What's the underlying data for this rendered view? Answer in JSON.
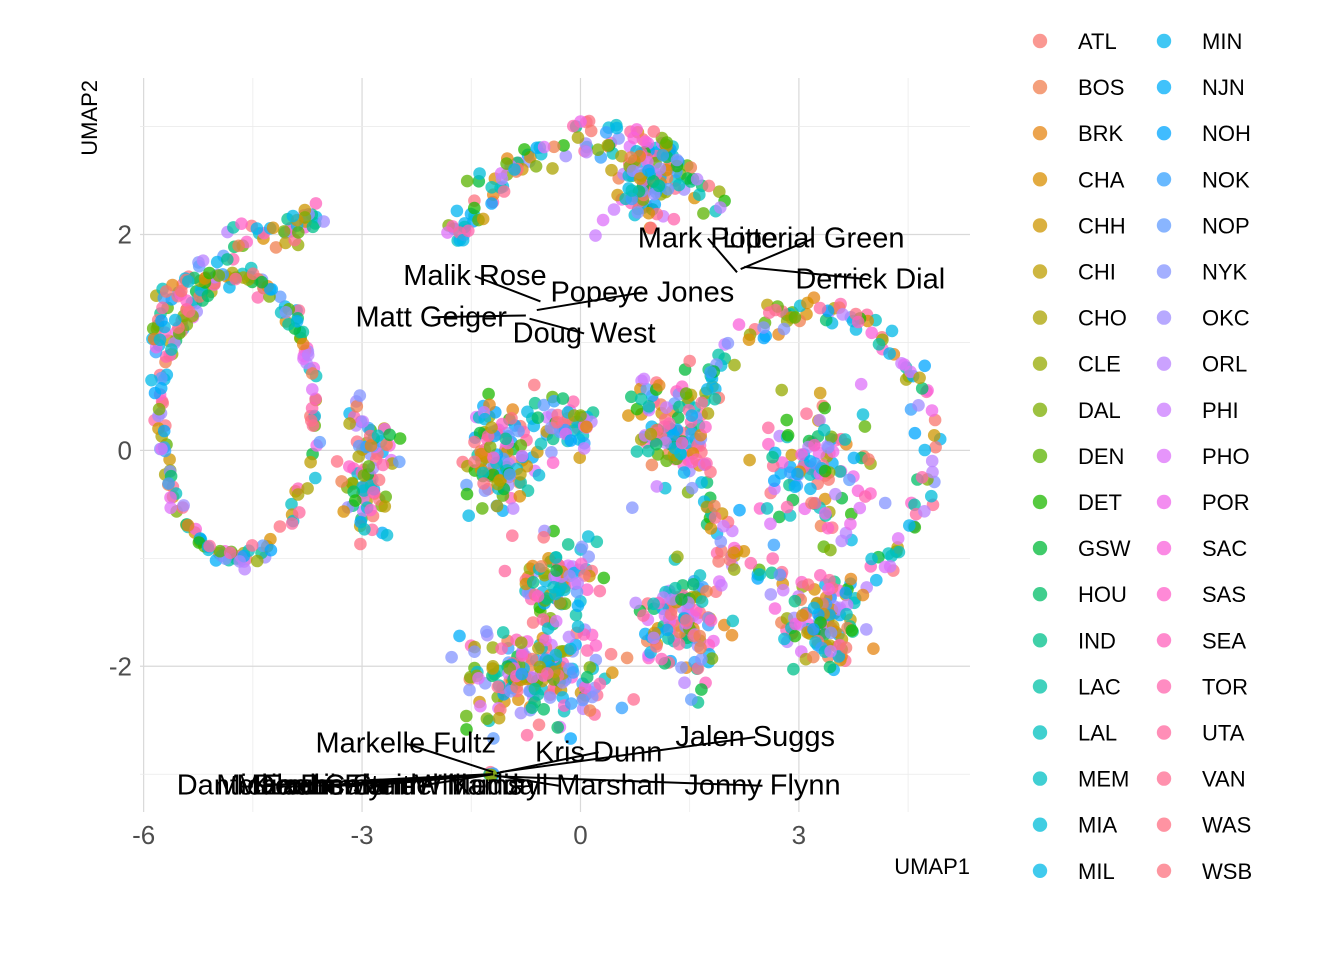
{
  "chart_data": {
    "type": "scatter",
    "xlabel": "UMAP1",
    "ylabel": "UMAP2",
    "xlim": [
      -6.05,
      5.35
    ],
    "ylim": [
      -3.35,
      3.45
    ],
    "x_ticks": [
      -6,
      -3,
      0,
      3
    ],
    "x_tick_labels": [
      "-6",
      "-3",
      "0",
      "3"
    ],
    "y_ticks": [
      -2,
      0,
      2
    ],
    "y_tick_labels": [
      "-2",
      "0",
      "2"
    ],
    "grid": true,
    "legend_placement": "right",
    "legend": [
      {
        "name": "ATL",
        "color": "#F8766D"
      },
      {
        "name": "BOS",
        "color": "#F07F4F"
      },
      {
        "name": "BRK",
        "color": "#E68613"
      },
      {
        "name": "CHA",
        "color": "#DA8F00"
      },
      {
        "name": "CHH",
        "color": "#CD9600"
      },
      {
        "name": "CHI",
        "color": "#BD9D00"
      },
      {
        "name": "CHO",
        "color": "#ABA300"
      },
      {
        "name": "CLE",
        "color": "#96A900"
      },
      {
        "name": "DAL",
        "color": "#7CAE00"
      },
      {
        "name": "DEN",
        "color": "#5BB300"
      },
      {
        "name": "DET",
        "color": "#1EB800"
      },
      {
        "name": "GSW",
        "color": "#00BA38"
      },
      {
        "name": "HOU",
        "color": "#00BE67"
      },
      {
        "name": "IND",
        "color": "#00C08B"
      },
      {
        "name": "LAC",
        "color": "#00C1A7"
      },
      {
        "name": "LAL",
        "color": "#00C0BF"
      },
      {
        "name": "MEM",
        "color": "#00BFC4"
      },
      {
        "name": "MIA",
        "color": "#00BCD8"
      },
      {
        "name": "MIL",
        "color": "#00B8E7"
      },
      {
        "name": "MIN",
        "color": "#00B4F0"
      },
      {
        "name": "NJN",
        "color": "#00AEFA"
      },
      {
        "name": "NOH",
        "color": "#00A5FF"
      },
      {
        "name": "NOK",
        "color": "#35A2FF"
      },
      {
        "name": "NOP",
        "color": "#619CFF"
      },
      {
        "name": "NYK",
        "color": "#8494FF"
      },
      {
        "name": "OKC",
        "color": "#9F8CFF"
      },
      {
        "name": "ORL",
        "color": "#B983FF"
      },
      {
        "name": "PHI",
        "color": "#CB7BFF"
      },
      {
        "name": "PHO",
        "color": "#DE71F9"
      },
      {
        "name": "POR",
        "color": "#EF67EB"
      },
      {
        "name": "SAC",
        "color": "#FA62DB"
      },
      {
        "name": "SAS",
        "color": "#FF61C9"
      },
      {
        "name": "SEA",
        "color": "#FF62BC"
      },
      {
        "name": "TOR",
        "color": "#FF65AE"
      },
      {
        "name": "UTA",
        "color": "#FF689F"
      },
      {
        "name": "VAN",
        "color": "#FF6C91"
      },
      {
        "name": "WAS",
        "color": "#FF6F83"
      },
      {
        "name": "WSB",
        "color": "#FC717F"
      }
    ],
    "labels": [
      {
        "text": "Mark Pope",
        "x": 1.75,
        "y": 1.88,
        "px": 2.15,
        "py": 1.65
      },
      {
        "text": "Litterial Green",
        "x": 3.2,
        "y": 1.88,
        "px": 2.2,
        "py": 1.68
      },
      {
        "text": "Derrick Dial",
        "x": 3.98,
        "y": 1.5,
        "px": 2.25,
        "py": 1.7
      },
      {
        "text": "Malik Rose",
        "x": -1.45,
        "y": 1.53,
        "px": -0.55,
        "py": 1.38
      },
      {
        "text": "Popeye Jones",
        "x": 0.85,
        "y": 1.38,
        "px": -0.6,
        "py": 1.3
      },
      {
        "text": "Matt Geiger",
        "x": -2.05,
        "y": 1.15,
        "px": -0.75,
        "py": 1.25
      },
      {
        "text": "Doug West",
        "x": 0.05,
        "y": 1.0,
        "px": -0.7,
        "py": 1.22
      },
      {
        "text": "Markelle Fultz",
        "x": -2.4,
        "y": -2.8,
        "px": -1.2,
        "py": -2.98
      },
      {
        "text": "Jalen Suggs",
        "x": 2.4,
        "y": -2.74,
        "px": -1.1,
        "py": -2.98
      },
      {
        "text": "Kris Dunn",
        "x": 0.25,
        "y": -2.88,
        "px": -1.15,
        "py": -2.99
      },
      {
        "text": "Jonny Flynn",
        "x": 2.5,
        "y": -3.19,
        "px": -1.15,
        "py": -3.02
      },
      {
        "text": "Kendall Marshall",
        "x": -0.3,
        "y": -3.19,
        "px": -1.18,
        "py": -3.01
      },
      {
        "text": "Dennis Smith",
        "x": -3.3,
        "y": -3.19,
        "px": -1.2,
        "py": -3.0
      },
      {
        "text": "Dante Exum",
        "x": -4.45,
        "y": -3.19,
        "px": -1.25,
        "py": -3.0
      },
      {
        "text": "Kira Lewis",
        "x": -3.6,
        "y": -3.19,
        "px": -1.22,
        "py": -3.0
      },
      {
        "text": "Emmanuel Mudiay",
        "x": -2.2,
        "y": -3.19,
        "px": -1.2,
        "py": -3.0
      },
      {
        "text": "Michael Carter-Williams",
        "x": -2.9,
        "y": -3.19,
        "px": -1.2,
        "py": -3.0
      },
      {
        "text": "Malachi Flynn",
        "x": -3.5,
        "y": -3.19,
        "px": -1.22,
        "py": -3.0
      }
    ],
    "clusters": [
      {
        "kind": "ring",
        "cx": -4.7,
        "cy": 0.3,
        "rx": 1.05,
        "ry": 1.3,
        "n": 200,
        "spread": 0.12
      },
      {
        "kind": "arc",
        "cx": -3.5,
        "cy": 0.4,
        "rx": 2.6,
        "ry": 1.7,
        "a0": 180,
        "a1": 90,
        "n": 120,
        "spread": 0.14
      },
      {
        "kind": "blob",
        "cx": -2.9,
        "cy": -0.2,
        "rx": 0.6,
        "ry": 0.95,
        "n": 90
      },
      {
        "kind": "blob",
        "cx": -1.1,
        "cy": 0.0,
        "rx": 0.85,
        "ry": 0.8,
        "n": 120
      },
      {
        "kind": "arc",
        "cx": 0.2,
        "cy": 1.0,
        "rx": 2.2,
        "ry": 1.9,
        "a0": 150,
        "a1": 40,
        "n": 130,
        "spread": 0.14
      },
      {
        "kind": "blob",
        "cx": 0.85,
        "cy": 2.5,
        "rx": 0.7,
        "ry": 0.6,
        "n": 90
      },
      {
        "kind": "blob",
        "cx": 1.2,
        "cy": 0.2,
        "rx": 0.75,
        "ry": 0.9,
        "n": 100
      },
      {
        "kind": "ring",
        "cx": 3.2,
        "cy": 0.0,
        "rx": 1.6,
        "ry": 1.3,
        "n": 200,
        "spread": 0.16
      },
      {
        "kind": "blob",
        "cx": 3.2,
        "cy": -0.2,
        "rx": 1.1,
        "ry": 1.0,
        "n": 120
      },
      {
        "kind": "blob",
        "cx": 3.3,
        "cy": -1.7,
        "rx": 0.8,
        "ry": 0.6,
        "n": 90
      },
      {
        "kind": "blob",
        "cx": 1.4,
        "cy": -1.6,
        "rx": 0.9,
        "ry": 0.8,
        "n": 130
      },
      {
        "kind": "blob",
        "cx": -0.6,
        "cy": -2.1,
        "rx": 1.5,
        "ry": 0.65,
        "n": 200
      },
      {
        "kind": "blob",
        "cx": -0.3,
        "cy": -1.2,
        "rx": 0.9,
        "ry": 0.6,
        "n": 90
      },
      {
        "kind": "blob",
        "cx": -0.2,
        "cy": 0.2,
        "rx": 0.6,
        "ry": 0.5,
        "n": 50
      },
      {
        "kind": "blob",
        "cx": -1.22,
        "cy": -3.0,
        "rx": 0.04,
        "ry": 0.03,
        "n": 14
      }
    ]
  }
}
